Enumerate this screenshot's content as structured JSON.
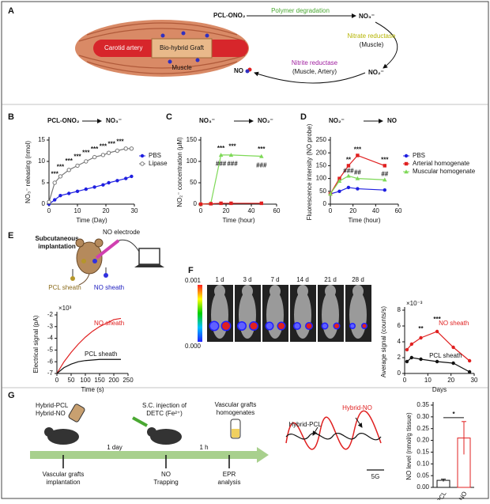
{
  "diagrams": {
    "A": {
      "panel": "A",
      "texts": [
        "PCL-ONO₂",
        "Polymer degradation",
        "NO₃⁻",
        "Nitrate reductase",
        "(Muscle)",
        "NO₂⁻",
        "Nitrite reductase",
        "(Muscle, Artery)",
        "NO",
        "Carotid artery",
        "Bio-hybrid Graft",
        "Muscle"
      ]
    },
    "E": {
      "panel": "E",
      "texts": [
        "Subcutaneous",
        "implantation",
        "NO electrode",
        "PCL sheath",
        "NO sheath"
      ]
    },
    "F": {
      "panel": "F",
      "scale_top": "0.001",
      "scale_bottom": "0.000",
      "days": [
        "1 d",
        "3 d",
        "7 d",
        "14 d",
        "21 d",
        "28 d"
      ]
    },
    "G": {
      "panel": "G",
      "texts": [
        "Hybrid-PCL",
        "Hybrid-NO",
        "S.C. injection of",
        "DETC (Fe²⁺)",
        "Vascular grafts",
        "homogenates",
        "1 day",
        "1 h",
        "Vascular grafts",
        "implantation",
        "NO",
        "Trapping",
        "EPR",
        "analysis"
      ],
      "epr": [
        "Hybrid-PCL",
        "Hybrid-NO",
        "5G"
      ]
    }
  },
  "chart_data": [
    {
      "type": "line",
      "panel": "B",
      "title": [
        "PCL-ONO₂",
        "NO₃⁻"
      ],
      "xlabel": "Time (Day)",
      "ylabel": "NO₃⁻ releasing (nmol)",
      "x": [
        0,
        2,
        4,
        7,
        10,
        13,
        16,
        19,
        21,
        24,
        27,
        29
      ],
      "series": [
        {
          "name": "PBS",
          "color": "#1f1fe0",
          "marker": "circle",
          "values": [
            0,
            1,
            2,
            2.5,
            3,
            3.5,
            4,
            4.5,
            5,
            5.5,
            6,
            6.5
          ]
        },
        {
          "name": "Lipase",
          "color": "#777777",
          "marker": "open-circle",
          "values": [
            0.5,
            5,
            6.5,
            8,
            9,
            10,
            11,
            11.5,
            12,
            12.5,
            13,
            13
          ]
        }
      ],
      "xlim": [
        0,
        30
      ],
      "xticks": [
        0,
        10,
        20,
        30
      ],
      "ylim": [
        0,
        15
      ],
      "yticks": [
        0,
        5,
        10,
        15
      ],
      "legend": "right",
      "annotations": [
        {
          "text": "***",
          "x": 2,
          "y": 7
        },
        {
          "text": "***",
          "x": 4,
          "y": 8.6
        },
        {
          "text": "***",
          "x": 7,
          "y": 10
        },
        {
          "text": "***",
          "x": 10,
          "y": 11
        },
        {
          "text": "***",
          "x": 13,
          "y": 12
        },
        {
          "text": "***",
          "x": 16,
          "y": 12.8
        },
        {
          "text": "***",
          "x": 19,
          "y": 13.4
        },
        {
          "text": "***",
          "x": 22,
          "y": 14
        },
        {
          "text": "***",
          "x": 25,
          "y": 14.6
        }
      ]
    },
    {
      "type": "line",
      "panel": "C",
      "title": [
        "NO₃⁻",
        "NO₂⁻"
      ],
      "xlabel": "Time (hour)",
      "ylabel": "NO₂⁻ concentration (μM)",
      "x": [
        0,
        8,
        16,
        24,
        48
      ],
      "series": [
        {
          "color": "#7ed957",
          "marker": "triangle",
          "values": [
            0,
            2,
            115,
            115,
            112
          ]
        },
        {
          "color": "#e02020",
          "marker": "square",
          "values": [
            0,
            1,
            2,
            2,
            2
          ]
        }
      ],
      "xlim": [
        0,
        60
      ],
      "xticks": [
        0,
        20,
        40,
        60
      ],
      "ylim": [
        0,
        150
      ],
      "yticks": [
        0,
        50,
        100,
        150
      ],
      "legend": "none",
      "annotations": [
        {
          "text": "***",
          "x": 16,
          "y": 130
        },
        {
          "text": "***",
          "x": 25,
          "y": 134
        },
        {
          "text": "***",
          "x": 48,
          "y": 128
        },
        {
          "text": "###",
          "x": 16,
          "y": 94
        },
        {
          "text": "###",
          "x": 25,
          "y": 94
        },
        {
          "text": "###",
          "x": 48,
          "y": 90
        }
      ]
    },
    {
      "type": "line",
      "panel": "D",
      "title": [
        "NO₂⁻",
        "NO"
      ],
      "xlabel": "Time (hour)",
      "ylabel": "Fluorescence intensity (NO probe)",
      "x": [
        0,
        8,
        16,
        24,
        48
      ],
      "series": [
        {
          "name": "PBS",
          "color": "#1f1fe0",
          "marker": "circle",
          "values": [
            40,
            50,
            65,
            60,
            55
          ]
        },
        {
          "name": "Arterial homogenate",
          "color": "#e02020",
          "marker": "square",
          "values": [
            40,
            100,
            150,
            190,
            150
          ]
        },
        {
          "name": "Muscular homogenate",
          "color": "#7ed957",
          "marker": "triangle",
          "values": [
            40,
            90,
            110,
            100,
            95
          ]
        }
      ],
      "xlim": [
        0,
        60
      ],
      "xticks": [
        0,
        20,
        40,
        60
      ],
      "ylim": [
        0,
        250
      ],
      "yticks": [
        0,
        50,
        100,
        150,
        200,
        250
      ],
      "legend": "right",
      "annotations": [
        {
          "text": "**",
          "x": 16,
          "y": 172
        },
        {
          "text": "***",
          "x": 24,
          "y": 212
        },
        {
          "text": "***",
          "x": 48,
          "y": 172
        },
        {
          "text": "###",
          "x": 16,
          "y": 128
        },
        {
          "text": "##",
          "x": 24,
          "y": 122
        },
        {
          "text": "##",
          "x": 48,
          "y": 116
        }
      ]
    },
    {
      "type": "line",
      "panel": "",
      "xlabel": "Time (s)",
      "ylabel": "Electrical signal (pA)",
      "yscale_label": "×10³",
      "x": [
        0,
        25,
        50,
        75,
        100,
        125,
        150,
        175,
        200,
        225
      ],
      "series": [
        {
          "name": "NO sheath",
          "color": "#e02020",
          "values": [
            -7,
            -6,
            -5.2,
            -4.5,
            -3.9,
            -3.4,
            -3,
            -2.7,
            -2.4,
            -2.3
          ]
        },
        {
          "name": "PCL sheath",
          "color": "#111111",
          "values": [
            -7,
            -6.5,
            -6.2,
            -6,
            -5.9,
            -5.85,
            -5.8,
            -5.8,
            -5.8,
            -5.8
          ]
        }
      ],
      "xlim": [
        0,
        250
      ],
      "xticks": [
        0,
        50,
        100,
        150,
        200,
        250
      ],
      "ylim": [
        -7,
        -2
      ],
      "yticks": [
        -7,
        -6,
        -5,
        -4,
        -3,
        -2
      ],
      "legend": "inline",
      "annotations": []
    },
    {
      "type": "line",
      "panel": "",
      "xlabel": "Days",
      "ylabel": "Average signal (counts/s)",
      "yscale_label": "×10⁻³",
      "x": [
        1,
        3,
        7,
        14,
        21,
        28
      ],
      "series": [
        {
          "name": "NO sheath",
          "color": "#e02020",
          "marker": "circle",
          "values": [
            3,
            3.7,
            4.5,
            5.3,
            3.3,
            1.6
          ]
        },
        {
          "name": "PCL sheath",
          "color": "#111111",
          "marker": "circle",
          "values": [
            1.5,
            2,
            1.8,
            1.5,
            1.3,
            0.2
          ]
        }
      ],
      "xlim": [
        0,
        30
      ],
      "xticks": [
        0,
        10,
        20,
        30
      ],
      "ylim": [
        0,
        8
      ],
      "yticks": [
        0,
        2,
        4,
        6,
        8
      ],
      "legend": "inline",
      "annotations": [
        {
          "text": "**",
          "x": 7,
          "y": 5.6
        },
        {
          "text": "***",
          "x": 14,
          "y": 6.8
        }
      ]
    },
    {
      "type": "bar",
      "panel": "",
      "ylabel": "NO level (nmol/g tissue)",
      "categories": [
        "Hybrid-PCL",
        "Hybrid-NO"
      ],
      "values": [
        0.03,
        0.21
      ],
      "errors": [
        0.005,
        0.07
      ],
      "colors": [
        "#111111",
        "#e02020"
      ],
      "ylim": [
        0,
        0.35
      ],
      "yticks": [
        {
          "value": 0,
          "label": "0.00"
        },
        0.05,
        {
          "value": 0.1,
          "label": "0.10"
        },
        0.15,
        {
          "value": 0.2,
          "label": "0.20"
        },
        0.25,
        {
          "value": 0.3,
          "label": "0.30"
        },
        0.35
      ],
      "annotations": [
        {
          "text": "*",
          "y": 0.31
        }
      ]
    }
  ]
}
